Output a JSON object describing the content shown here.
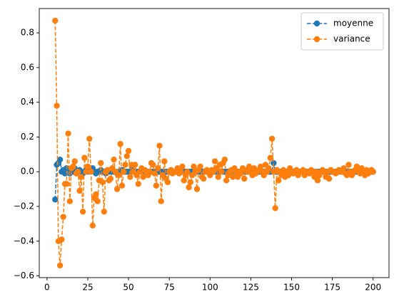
{
  "chart_data": {
    "type": "line",
    "x": [
      5,
      6,
      7,
      8,
      9,
      10,
      11,
      12,
      13,
      14,
      15,
      16,
      17,
      18,
      19,
      20,
      21,
      22,
      23,
      24,
      25,
      26,
      27,
      28,
      29,
      30,
      31,
      32,
      33,
      34,
      35,
      36,
      37,
      38,
      39,
      40,
      41,
      42,
      43,
      44,
      45,
      46,
      47,
      48,
      49,
      50,
      51,
      52,
      53,
      54,
      55,
      56,
      57,
      58,
      59,
      60,
      61,
      62,
      63,
      64,
      65,
      66,
      67,
      68,
      69,
      70,
      71,
      72,
      73,
      74,
      75,
      76,
      77,
      78,
      79,
      80,
      81,
      82,
      83,
      84,
      85,
      86,
      87,
      88,
      89,
      90,
      91,
      92,
      93,
      94,
      95,
      96,
      97,
      98,
      99,
      100,
      101,
      102,
      103,
      104,
      105,
      106,
      107,
      108,
      109,
      110,
      111,
      112,
      113,
      114,
      115,
      116,
      117,
      118,
      119,
      120,
      121,
      122,
      123,
      124,
      125,
      126,
      127,
      128,
      129,
      130,
      131,
      132,
      133,
      134,
      135,
      136,
      137,
      138,
      139,
      140,
      141,
      142,
      143,
      144,
      145,
      146,
      147,
      148,
      149,
      150,
      151,
      152,
      153,
      154,
      155,
      156,
      157,
      158,
      159,
      160,
      161,
      162,
      163,
      164,
      165,
      166,
      167,
      168,
      169,
      170,
      171,
      172,
      173,
      174,
      175,
      176,
      177,
      178,
      179,
      180,
      181,
      182,
      183,
      184,
      185,
      186,
      187,
      188,
      189,
      190,
      191,
      192,
      193,
      194,
      195,
      196,
      197,
      198,
      199,
      200
    ],
    "series": [
      {
        "name": "moyenne",
        "color": "#1f77b4",
        "values": [
          -0.16,
          0.04,
          0.05,
          0.07,
          0.0,
          0.01,
          -0.01,
          0.02,
          0.0,
          -0.01,
          0.01,
          0.0,
          0.02,
          -0.01,
          0.0,
          0.01,
          0.0,
          -0.01,
          0.0,
          0.01,
          0.0,
          0.01,
          0.01,
          0.02,
          0.0,
          -0.01,
          0.0,
          0.0,
          0.01,
          0.0,
          0.0,
          -0.01,
          0.0,
          0.0,
          0.01,
          0.0,
          0.0,
          0.0,
          -0.01,
          0.0,
          0.0,
          0.01,
          0.0,
          0.0,
          0.0,
          0.0,
          0.0,
          0.01,
          0.0,
          0.0,
          0.0,
          0.0,
          0.0,
          0.01,
          0.0,
          0.0,
          0.0,
          0.0,
          0.0,
          0.0,
          0.0,
          0.0,
          0.0,
          0.0,
          0.0,
          0.0,
          0.0,
          0.0,
          0.0,
          0.0,
          0.0,
          0.0,
          0.0,
          0.0,
          0.0,
          0.0,
          0.0,
          0.0,
          0.0,
          0.0,
          0.0,
          0.0,
          0.0,
          0.0,
          0.0,
          0.0,
          0.0,
          0.0,
          0.0,
          0.0,
          0.0,
          0.0,
          0.0,
          0.0,
          0.0,
          0.0,
          0.0,
          0.0,
          0.0,
          0.0,
          0.0,
          0.0,
          0.0,
          0.0,
          0.0,
          0.0,
          0.0,
          0.0,
          0.0,
          0.0,
          0.0,
          0.0,
          0.0,
          0.0,
          0.0,
          0.0,
          0.0,
          0.0,
          0.0,
          0.0,
          0.0,
          0.0,
          0.0,
          0.0,
          0.0,
          0.0,
          0.0,
          0.0,
          0.0,
          0.0,
          0.0,
          0.0,
          0.0,
          0.0,
          0.05,
          0.0,
          0.0,
          0.0,
          0.0,
          0.0,
          0.0,
          0.0,
          0.0,
          0.0,
          0.0,
          0.0,
          0.0,
          0.0,
          0.0,
          0.0,
          0.0,
          0.0,
          0.0,
          0.0,
          0.0,
          0.0,
          0.0,
          0.0,
          0.0,
          0.0,
          0.0,
          0.0,
          0.0,
          0.0,
          0.0,
          0.0,
          0.0,
          0.0,
          0.0,
          0.0,
          0.0,
          0.0,
          0.0,
          0.0,
          0.0,
          0.0,
          0.0,
          0.0,
          0.0,
          0.0,
          0.0,
          0.0,
          0.0,
          0.0,
          0.0,
          0.0,
          0.0,
          0.0,
          0.0,
          0.0,
          0.0,
          0.0,
          0.0,
          0.0,
          0.0,
          0.0
        ]
      },
      {
        "name": "variance",
        "color": "#ff7f0e",
        "values": [
          0.87,
          0.38,
          -0.4,
          -0.54,
          -0.39,
          -0.26,
          -0.07,
          -0.07,
          0.22,
          -0.17,
          0.02,
          0.03,
          0.06,
          -0.01,
          0.0,
          -0.11,
          -0.03,
          -0.23,
          0.08,
          0.0,
          0.03,
          0.19,
          0.0,
          -0.31,
          -0.15,
          -0.13,
          -0.17,
          -0.05,
          0.05,
          -0.06,
          -0.23,
          0.0,
          0.01,
          -0.05,
          -0.04,
          0.02,
          0.07,
          0.0,
          -0.1,
          -0.02,
          0.16,
          -0.08,
          0.0,
          0.04,
          0.09,
          0.12,
          -0.03,
          0.04,
          0.0,
          0.04,
          -0.02,
          -0.07,
          0.0,
          0.02,
          -0.03,
          0.01,
          0.0,
          -0.02,
          0.0,
          0.05,
          0.04,
          -0.01,
          -0.08,
          0.02,
          0.15,
          -0.17,
          -0.02,
          0.06,
          -0.04,
          -0.06,
          0.0,
          0.01,
          -0.01,
          0.0,
          0.0,
          0.02,
          -0.01,
          0.0,
          0.03,
          -0.05,
          -0.02,
          0.0,
          -0.09,
          -0.06,
          -0.02,
          0.03,
          0.0,
          -0.1,
          0.01,
          0.03,
          -0.03,
          -0.04,
          0.0,
          0.01,
          0.0,
          -0.02,
          0.01,
          0.0,
          0.06,
          0.02,
          -0.03,
          0.04,
          0.0,
          0.05,
          0.07,
          -0.05,
          -0.02,
          0.0,
          0.01,
          -0.03,
          0.02,
          0.0,
          -0.03,
          0.0,
          -0.01,
          0.02,
          -0.04,
          0.01,
          0.0,
          0.03,
          0.0,
          -0.02,
          0.02,
          -0.01,
          0.0,
          0.01,
          0.03,
          0.0,
          -0.02,
          0.04,
          0.0,
          0.02,
          0.08,
          0.19,
          0.0,
          -0.21,
          0.01,
          -0.05,
          0.0,
          -0.02,
          0.01,
          -0.03,
          0.0,
          -0.02,
          0.02,
          0.0,
          -0.01,
          0.0,
          0.01,
          -0.02,
          0.0,
          0.0,
          0.01,
          -0.02,
          0.0,
          0.0,
          -0.01,
          0.01,
          0.0,
          -0.03,
          0.0,
          -0.05,
          -0.02,
          0.0,
          0.01,
          0.0,
          -0.03,
          0.0,
          -0.04,
          0.01,
          0.0,
          0.0,
          -0.01,
          0.0,
          0.01,
          0.0,
          0.0,
          0.02,
          -0.01,
          -0.02,
          0.04,
          0.0,
          -0.02,
          0.0,
          0.01,
          0.03,
          0.0,
          -0.01,
          0.02,
          0.0,
          -0.02,
          0.01,
          -0.01,
          0.0,
          0.01,
          0.0
        ]
      }
    ],
    "xlim": [
      -4.75,
      209.75
    ],
    "xticks": [
      0,
      25,
      50,
      75,
      100,
      125,
      150,
      175,
      200
    ],
    "ylim": [
      -0.61,
      0.94
    ],
    "yticks": [
      {
        "value": -0.6,
        "label": "−0.6"
      },
      {
        "value": -0.4,
        "label": "−0.4"
      },
      {
        "value": -0.2,
        "label": "−0.2"
      },
      {
        "value": 0,
        "label": "0.0"
      },
      0.2,
      0.4,
      0.6,
      0.8
    ],
    "line_style": "dashed",
    "marker": "circle",
    "legend": "upper right"
  }
}
